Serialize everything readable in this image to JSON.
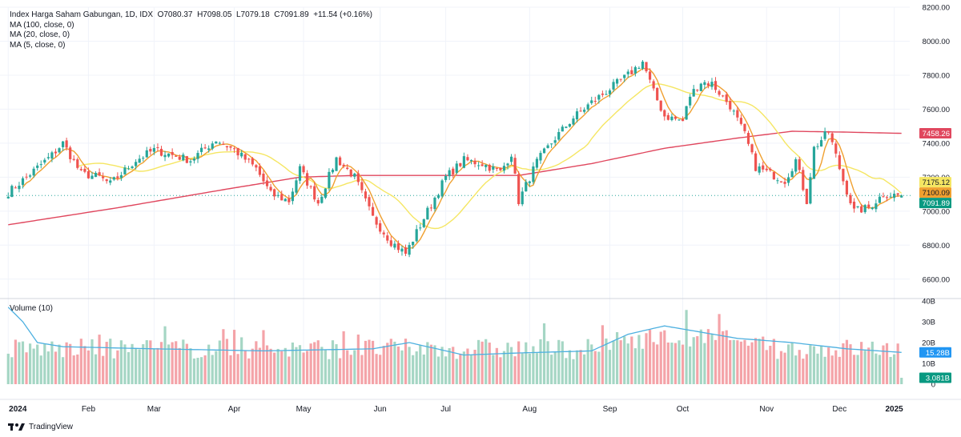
{
  "legend": {
    "header": "Index Harga Saham Gabungan, 1D, IDX",
    "open": "O7080.37",
    "high": "H7098.05",
    "low": "L7079.18",
    "close": "C7091.89",
    "change": "+11.54 (+0.16%)",
    "ma100": "MA (100, close, 0)",
    "ma20": "MA (20, close, 0)",
    "ma5": "MA (5, close, 0)",
    "volume": "Volume (10)"
  },
  "brand": "TradingView",
  "colors": {
    "up": "#26a69a",
    "down": "#ef5350",
    "ma100": "#e0475e",
    "ma20": "#f5e663",
    "ma5": "#f0a030",
    "vol_ma": "#4db0e0",
    "vol_up": "#a5d6c4",
    "vol_down": "#f4a3a8"
  },
  "chart_data": {
    "type": "candlestick",
    "x_labels": [
      "2024",
      "Feb",
      "Mar",
      "Apr",
      "May",
      "Jun",
      "Jul",
      "Aug",
      "Sep",
      "Oct",
      "Nov",
      "Dec",
      "2025"
    ],
    "y_price_ticks": [
      "8200.00",
      "8000.00",
      "7800.00",
      "7600.00",
      "7400.00",
      "7200.00",
      "7000.00",
      "6800.00",
      "6600.00"
    ],
    "ylim_price": [
      6500,
      8200
    ],
    "y_volume_ticks": [
      "40B",
      "30B",
      "20B",
      "10B",
      "0"
    ],
    "ylim_volume": [
      0,
      40
    ],
    "price_markers": [
      {
        "label": "7458.26",
        "value": 7458.26,
        "series": "MA (100, close, 0)"
      },
      {
        "label": "7175.12",
        "value": 7175.12,
        "series": "MA (20, close, 0)"
      },
      {
        "label": "7100.09",
        "value": 7100.09,
        "series": "MA (5, close, 0)"
      },
      {
        "label": "7091.89",
        "value": 7091.89,
        "series": "close"
      }
    ],
    "volume_markers": [
      {
        "label": "15.28B",
        "value": 15.28,
        "series": "Volume MA"
      },
      {
        "label": "3.081B",
        "value": 3.081,
        "series": "Volume"
      }
    ],
    "close_path": [
      [
        0,
        7110
      ],
      [
        5,
        7200
      ],
      [
        12,
        7330
      ],
      [
        15,
        7400
      ],
      [
        20,
        7220
      ],
      [
        25,
        7200
      ],
      [
        28,
        7160
      ],
      [
        35,
        7300
      ],
      [
        40,
        7360
      ],
      [
        45,
        7330
      ],
      [
        50,
        7300
      ],
      [
        57,
        7420
      ],
      [
        62,
        7360
      ],
      [
        68,
        7250
      ],
      [
        72,
        7100
      ],
      [
        77,
        7060
      ],
      [
        80,
        7250
      ],
      [
        85,
        7050
      ],
      [
        90,
        7310
      ],
      [
        95,
        7200
      ],
      [
        100,
        6960
      ],
      [
        105,
        6820
      ],
      [
        109,
        6750
      ],
      [
        115,
        7000
      ],
      [
        120,
        7200
      ],
      [
        125,
        7300
      ],
      [
        130,
        7280
      ],
      [
        135,
        7230
      ],
      [
        138,
        7340
      ],
      [
        140,
        7060
      ],
      [
        145,
        7290
      ],
      [
        150,
        7430
      ],
      [
        155,
        7550
      ],
      [
        160,
        7640
      ],
      [
        165,
        7720
      ],
      [
        170,
        7800
      ],
      [
        174,
        7880
      ],
      [
        177,
        7700
      ],
      [
        180,
        7560
      ],
      [
        185,
        7530
      ],
      [
        187,
        7680
      ],
      [
        190,
        7760
      ],
      [
        193,
        7750
      ],
      [
        198,
        7620
      ],
      [
        202,
        7450
      ],
      [
        205,
        7260
      ],
      [
        210,
        7210
      ],
      [
        213,
        7180
      ],
      [
        216,
        7300
      ],
      [
        219,
        7060
      ],
      [
        221,
        7370
      ],
      [
        225,
        7470
      ],
      [
        229,
        7180
      ],
      [
        232,
        7000
      ],
      [
        236,
        7020
      ],
      [
        240,
        7100
      ],
      [
        245,
        7092
      ]
    ],
    "ma100_path": [
      [
        0,
        6920
      ],
      [
        30,
        7020
      ],
      [
        60,
        7130
      ],
      [
        80,
        7200
      ],
      [
        95,
        7210
      ],
      [
        120,
        7210
      ],
      [
        140,
        7210
      ],
      [
        160,
        7280
      ],
      [
        180,
        7370
      ],
      [
        200,
        7430
      ],
      [
        215,
        7470
      ],
      [
        230,
        7465
      ],
      [
        245,
        7458
      ]
    ],
    "volume_up_fraction": 0.5,
    "volume_ma_path": [
      [
        0,
        37
      ],
      [
        4,
        30
      ],
      [
        8,
        20
      ],
      [
        15,
        18
      ],
      [
        40,
        17
      ],
      [
        70,
        16
      ],
      [
        100,
        17
      ],
      [
        110,
        20
      ],
      [
        125,
        14
      ],
      [
        140,
        15
      ],
      [
        160,
        16
      ],
      [
        170,
        24
      ],
      [
        180,
        28
      ],
      [
        200,
        22
      ],
      [
        215,
        20
      ],
      [
        230,
        17
      ],
      [
        245,
        15.28
      ]
    ],
    "bar_count": 246,
    "month_starts": [
      0,
      22,
      40,
      62,
      81,
      102,
      120,
      143,
      165,
      185,
      208,
      228,
      243
    ]
  }
}
